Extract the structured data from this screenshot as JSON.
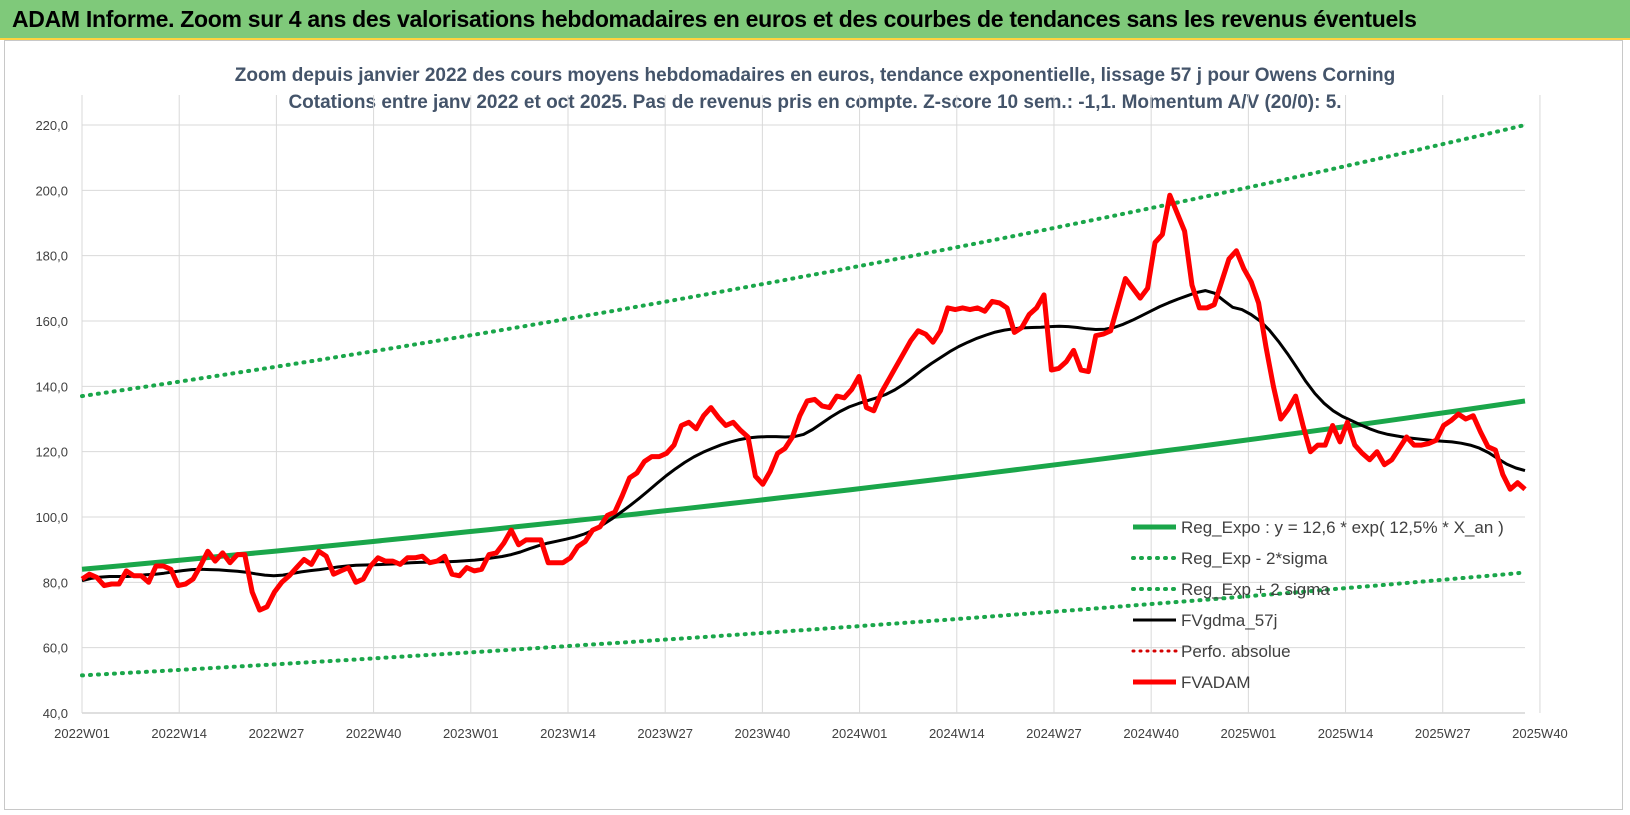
{
  "banner": {
    "title": "ADAM Informe. Zoom sur 4 ans des valorisations hebdomadaires en euros et des courbes de tendances sans les revenus éventuels"
  },
  "chart_data": {
    "type": "line",
    "title_line1": "Zoom depuis janvier 2022 des cours moyens hebdomadaires en euros, tendance exponentielle, lissage 57 j pour Owens Corning",
    "title_line2": "Cotations entre janv 2022 et oct 2025. Pas de revenus pris en compte. Z-score 10 sem.: -1,1.  Momentum A/V (20/0): 5.",
    "ylim": [
      40,
      220
    ],
    "y_ticks": [
      "40,0",
      "60,0",
      "80,0",
      "100,0",
      "120,0",
      "140,0",
      "160,0",
      "180,0",
      "200,0",
      "220,0"
    ],
    "x_ticks": [
      "2022W01",
      "2022W14",
      "2022W27",
      "2022W40",
      "2023W01",
      "2023W14",
      "2023W27",
      "2023W40",
      "2024W01",
      "2024W14",
      "2024W27",
      "2024W40",
      "2025W01",
      "2025W14",
      "2025W27",
      "2025W40"
    ],
    "grid": true,
    "legend_position": "bottom-right",
    "colors": {
      "reg_expo": "#1aa64a",
      "band": "#1aa64a",
      "fvgdma": "#000000",
      "perfo": "#d40000",
      "fvadam": "#ff0000"
    },
    "series": [
      {
        "name": "Reg_Expo : y = 12,6 * exp( 12,5% *  X_an )",
        "style": "solid",
        "values": [
          84,
          135.5
        ]
      },
      {
        "name": "Reg_Exp - 2*sigma",
        "style": "dotted",
        "values": [
          51.5,
          83
        ]
      },
      {
        "name": "Reg_Exp + 2 sigma",
        "style": "dotted",
        "values": [
          137,
          220
        ]
      },
      {
        "name": "FVgdma_57j",
        "style": "solid",
        "values": [
          80.5,
          81.2,
          81.6,
          81.8,
          81.8,
          81.8,
          82,
          82.3,
          82.5,
          82.8,
          83.2,
          83.6,
          83.9,
          84,
          83.9,
          83.8,
          83.6,
          83.4,
          83.1,
          82.6,
          82.2,
          82,
          82.2,
          82.7,
          83.2,
          83.6,
          83.9,
          84.3,
          84.7,
          85,
          85.2,
          85.3,
          85.4,
          85.5,
          85.6,
          85.8,
          86,
          86.1,
          86.2,
          86.3,
          86.3,
          86.4,
          86.6,
          86.8,
          87.1,
          87.5,
          87.9,
          88.5,
          89.3,
          90.3,
          91.2,
          92,
          92.6,
          93.2,
          93.9,
          94.8,
          96,
          97.6,
          99.4,
          101.4,
          103.5,
          105.7,
          108,
          110.4,
          112.7,
          114.8,
          116.7,
          118.4,
          119.8,
          121,
          122.1,
          123,
          123.7,
          124.2,
          124.5,
          124.6,
          124.6,
          124.5,
          124.6,
          125.3,
          126.8,
          128.7,
          130.6,
          132.3,
          133.7,
          134.7,
          135.6,
          136.5,
          137.5,
          138.9,
          140.7,
          142.8,
          145,
          147,
          148.8,
          150.6,
          152.2,
          153.5,
          154.7,
          155.7,
          156.6,
          157.2,
          157.6,
          157.9,
          158,
          158.1,
          158.3,
          158.4,
          158.3,
          158,
          157.6,
          157.4,
          157.5,
          158,
          159,
          160.2,
          161.6,
          163,
          164.4,
          165.6,
          166.7,
          167.7,
          168.7,
          169.3,
          168.5,
          166.3,
          164.2,
          163.5,
          162,
          160,
          157.2,
          153.8,
          150,
          145.8,
          141.5,
          137.8,
          134.8,
          132.5,
          130.8,
          129.5,
          128.2,
          127,
          126,
          125.3,
          124.8,
          124.3,
          124,
          123.7,
          123.4,
          123.2,
          123,
          122.6,
          122,
          121.1,
          119.7,
          117.9,
          116.2,
          115,
          114.2
        ]
      },
      {
        "name": "Perfo. absolue",
        "style": "dotted",
        "values": []
      },
      {
        "name": "FVADAM",
        "style": "solid",
        "values": [
          81,
          82.5,
          81.5,
          79,
          79.5,
          79.5,
          83.5,
          82,
          82,
          80,
          85,
          85,
          84,
          79,
          79.5,
          81,
          85,
          89.5,
          86.5,
          89,
          86,
          88.5,
          88.5,
          77,
          71.5,
          72.5,
          77,
          80,
          82,
          84.5,
          87,
          85.5,
          89.5,
          88,
          82.5,
          83.5,
          84.5,
          80,
          81,
          85,
          87.5,
          86.5,
          86.5,
          85.5,
          87.5,
          87.5,
          88,
          86,
          86.5,
          88,
          82.5,
          82,
          84.5,
          83.5,
          84,
          88.5,
          89,
          92,
          96,
          91.5,
          93,
          93,
          93,
          86,
          86,
          86,
          87.5,
          91,
          92.5,
          96,
          97,
          100.5,
          101.5,
          106.5,
          112,
          113.5,
          117,
          118.5,
          118.5,
          119.5,
          122,
          128,
          129,
          127,
          131,
          133.5,
          130.5,
          128,
          129,
          126.5,
          124.5,
          112.5,
          110,
          114,
          119.5,
          121,
          124.5,
          131,
          135.5,
          136,
          134,
          133.5,
          137,
          136.5,
          139,
          143,
          133.5,
          132.5,
          138,
          142,
          146,
          150,
          154,
          157,
          156,
          153.5,
          157,
          164,
          163.5,
          164,
          163.5,
          164,
          163,
          166,
          165.5,
          164,
          156.5,
          158,
          162,
          164,
          168,
          145,
          145.5,
          147.5,
          151,
          145,
          144.5,
          155.5,
          156,
          157,
          165,
          173,
          170,
          167,
          170,
          184,
          186.5,
          198.5,
          193,
          187.5,
          171,
          164,
          164,
          165,
          172,
          179,
          181.5,
          176,
          172,
          165.5,
          152,
          140,
          130,
          133,
          137,
          128,
          120,
          122,
          122,
          128,
          123,
          129,
          122,
          119.5,
          117.5,
          120,
          116,
          117.5,
          121,
          124.5,
          122,
          122,
          122.5,
          123.5,
          128,
          129.5,
          131.5,
          130,
          131,
          126,
          121.5,
          120.5,
          113,
          108.5,
          110.5,
          108.5
        ]
      }
    ]
  }
}
